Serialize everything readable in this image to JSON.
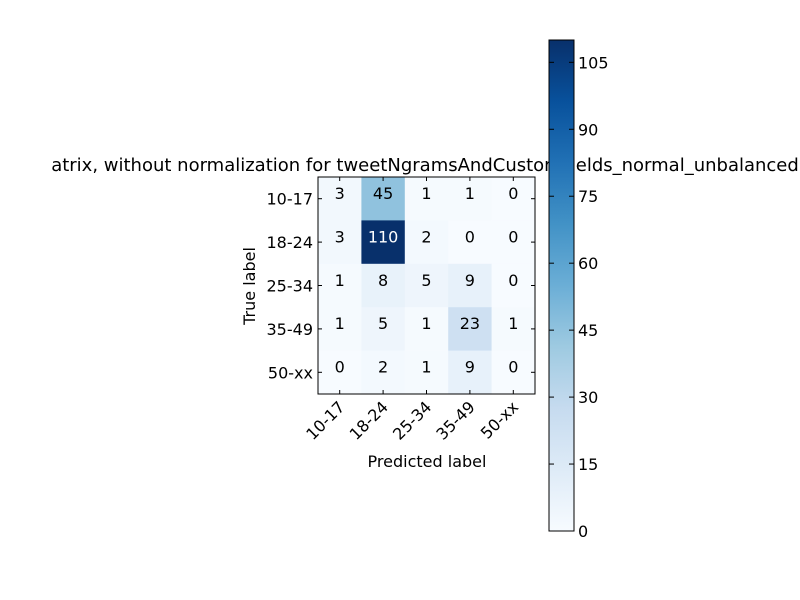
{
  "chart_data": {
    "type": "heatmap",
    "title": "atrix, without normalization for tweetNgramsAndCustomFields_normal_unbalanced",
    "xlabel": "Predicted label",
    "ylabel": "True label",
    "x_categories": [
      "10-17",
      "18-24",
      "25-34",
      "35-49",
      "50-xx"
    ],
    "y_categories": [
      "10-17",
      "18-24",
      "25-34",
      "35-49",
      "50-xx"
    ],
    "values": [
      [
        3,
        45,
        1,
        1,
        0
      ],
      [
        3,
        110,
        2,
        0,
        0
      ],
      [
        1,
        8,
        5,
        9,
        0
      ],
      [
        1,
        5,
        1,
        23,
        1
      ],
      [
        0,
        2,
        1,
        9,
        0
      ]
    ],
    "colorbar": {
      "colormap": "Blues",
      "range": [
        0,
        110
      ],
      "ticks": [
        "0",
        "15",
        "30",
        "45",
        "60",
        "75",
        "90",
        "105"
      ]
    }
  }
}
